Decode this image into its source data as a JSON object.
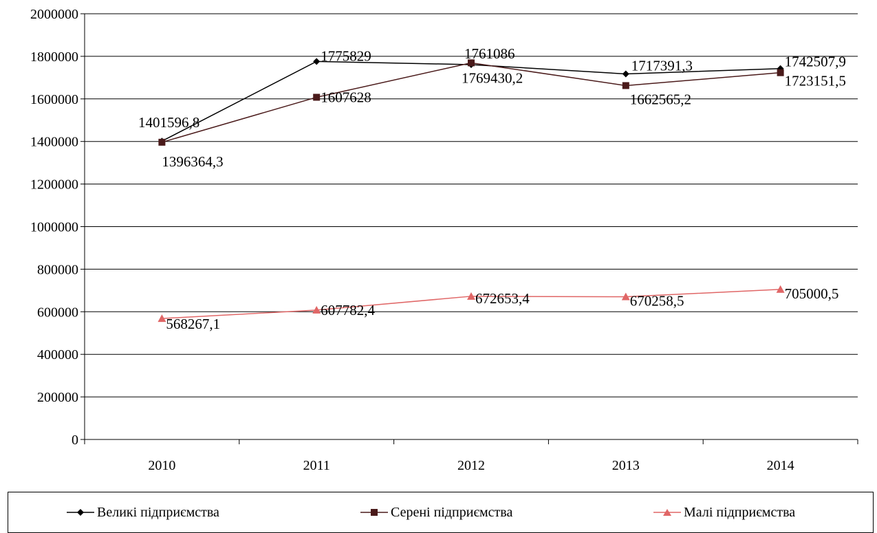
{
  "chart_data": {
    "type": "line",
    "categories": [
      "2010",
      "2011",
      "2012",
      "2013",
      "2014"
    ],
    "ylim": [
      0,
      2000000
    ],
    "yticks": [
      "0",
      "200000",
      "400000",
      "600000",
      "800000",
      "1000000",
      "1200000",
      "1400000",
      "1600000",
      "1800000",
      "2000000"
    ],
    "grid": true,
    "legend_position": "bottom",
    "series": [
      {
        "name": "Великі підприємства",
        "color": "#000000",
        "marker": "diamond",
        "values": [
          1401596.8,
          1775829,
          1761086,
          1717391.3,
          1742507.9
        ],
        "labels": [
          "1401596,8",
          "1775829",
          "1761086",
          "1717391,3",
          "1742507,9"
        ]
      },
      {
        "name": "Серені підприємства",
        "color": "#4a1a1a",
        "marker": "square",
        "values": [
          1396364.3,
          1607628,
          1769430.2,
          1662565.2,
          1723151.5
        ],
        "labels": [
          "1396364,3",
          "1607628",
          "1769430,2",
          "1662565,2",
          "1723151,5"
        ]
      },
      {
        "name": "Малі підприємства",
        "color": "#e06666",
        "marker": "triangle",
        "values": [
          568267.1,
          607782.4,
          672653.4,
          670258.5,
          705000.5
        ],
        "labels": [
          "568267,1",
          "607782,4",
          "672653,4",
          "670258,5",
          "705000,5"
        ]
      }
    ]
  }
}
